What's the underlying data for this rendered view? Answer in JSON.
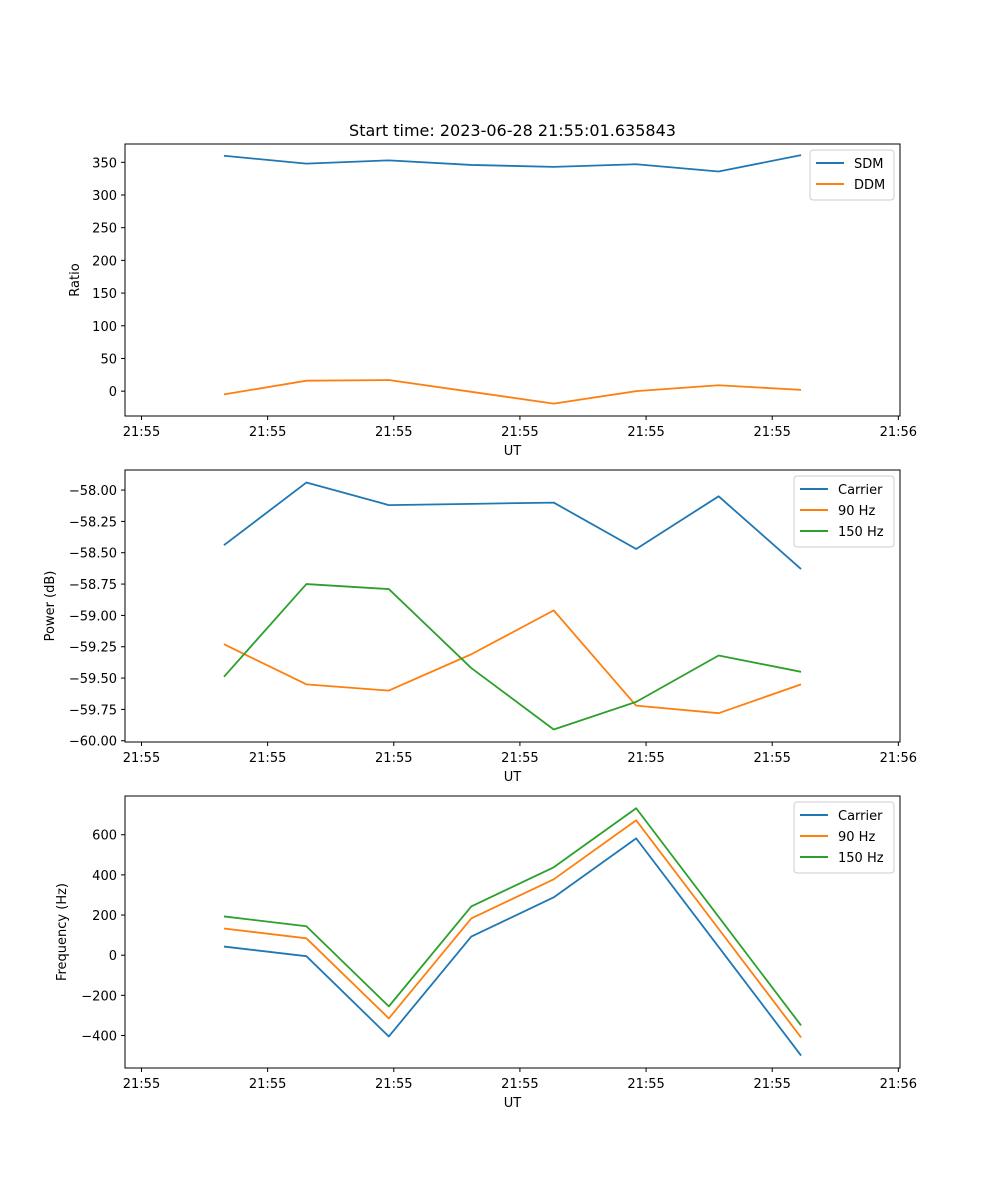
{
  "figure_title": "Start time: 2023-06-28 21:55:01.635843",
  "chart_data": [
    {
      "type": "line",
      "title": "Start time: 2023-06-28 21:55:01.635843",
      "xlabel": "UT",
      "ylabel": "Ratio",
      "x": [
        1.0,
        2.0,
        3.0,
        4.0,
        5.0,
        6.0,
        7.0,
        8.0
      ],
      "xlim": [
        -0.2,
        9.2
      ],
      "x_ticks": [
        0.0,
        1.53,
        3.06,
        4.59,
        6.12,
        7.65,
        9.18
      ],
      "x_tick_labels": [
        "21:55",
        "21:55",
        "21:55",
        "21:55",
        "21:55",
        "21:55",
        "21:56"
      ],
      "ylim": [
        -38,
        378
      ],
      "y_ticks": [
        0,
        50,
        100,
        150,
        200,
        250,
        300,
        350
      ],
      "y_tick_labels": [
        "0",
        "50",
        "100",
        "150",
        "200",
        "250",
        "300",
        "350"
      ],
      "legend_position": "upper right",
      "series": [
        {
          "name": "SDM",
          "color": "#1f77b4",
          "values": [
            360,
            348,
            353,
            346,
            343,
            347,
            336,
            361
          ]
        },
        {
          "name": "DDM",
          "color": "#ff7f0e",
          "values": [
            -5,
            16,
            17,
            -1,
            -19,
            0,
            9,
            2
          ]
        }
      ]
    },
    {
      "type": "line",
      "title": "",
      "xlabel": "UT",
      "ylabel": "Power (dB)",
      "x": [
        1.0,
        2.0,
        3.0,
        4.0,
        5.0,
        6.0,
        7.0,
        8.0
      ],
      "xlim": [
        -0.2,
        9.2
      ],
      "x_ticks": [
        0.0,
        1.53,
        3.06,
        4.59,
        6.12,
        7.65,
        9.18
      ],
      "x_tick_labels": [
        "21:55",
        "21:55",
        "21:55",
        "21:55",
        "21:55",
        "21:55",
        "21:56"
      ],
      "ylim": [
        -60.01,
        -57.84
      ],
      "y_ticks": [
        -60.0,
        -59.75,
        -59.5,
        -59.25,
        -59.0,
        -58.75,
        -58.5,
        -58.25,
        -58.0
      ],
      "y_tick_labels": [
        "−60.00",
        "−59.75",
        "−59.50",
        "−59.25",
        "−59.00",
        "−58.75",
        "−58.50",
        "−58.25",
        "−58.00"
      ],
      "legend_position": "upper right",
      "series": [
        {
          "name": "Carrier",
          "color": "#1f77b4",
          "values": [
            -58.44,
            -57.94,
            -58.12,
            -58.11,
            -58.1,
            -58.47,
            -58.05,
            -58.63
          ]
        },
        {
          "name": "90 Hz",
          "color": "#ff7f0e",
          "values": [
            -59.23,
            -59.55,
            -59.6,
            -59.31,
            -58.96,
            -59.72,
            -59.78,
            -59.55
          ]
        },
        {
          "name": "150 Hz",
          "color": "#2ca02c",
          "values": [
            -59.49,
            -58.75,
            -58.79,
            -59.42,
            -59.91,
            -59.69,
            -59.32,
            -59.45
          ]
        }
      ]
    },
    {
      "type": "line",
      "title": "",
      "xlabel": "UT",
      "ylabel": "Frequency (Hz)",
      "x": [
        1.0,
        2.0,
        3.0,
        4.0,
        5.0,
        6.0,
        7.0,
        8.0
      ],
      "xlim": [
        -0.2,
        9.2
      ],
      "x_ticks": [
        0.0,
        1.53,
        3.06,
        4.59,
        6.12,
        7.65,
        9.18
      ],
      "x_tick_labels": [
        "21:55",
        "21:55",
        "21:55",
        "21:55",
        "21:55",
        "21:55",
        "21:56"
      ],
      "ylim": [
        -562,
        793
      ],
      "y_ticks": [
        -400,
        -200,
        0,
        200,
        400,
        600
      ],
      "y_tick_labels": [
        "−400",
        "−200",
        "0",
        "200",
        "400",
        "600"
      ],
      "legend_position": "upper right",
      "series": [
        {
          "name": "Carrier",
          "color": "#1f77b4",
          "values": [
            43,
            -5,
            -405,
            93,
            288,
            582,
            41,
            -500
          ]
        },
        {
          "name": "90 Hz",
          "color": "#ff7f0e",
          "values": [
            133,
            84,
            -315,
            183,
            378,
            672,
            131,
            -410
          ]
        },
        {
          "name": "150 Hz",
          "color": "#2ca02c",
          "values": [
            193,
            144,
            -255,
            243,
            438,
            732,
            191,
            -350
          ]
        }
      ]
    }
  ]
}
